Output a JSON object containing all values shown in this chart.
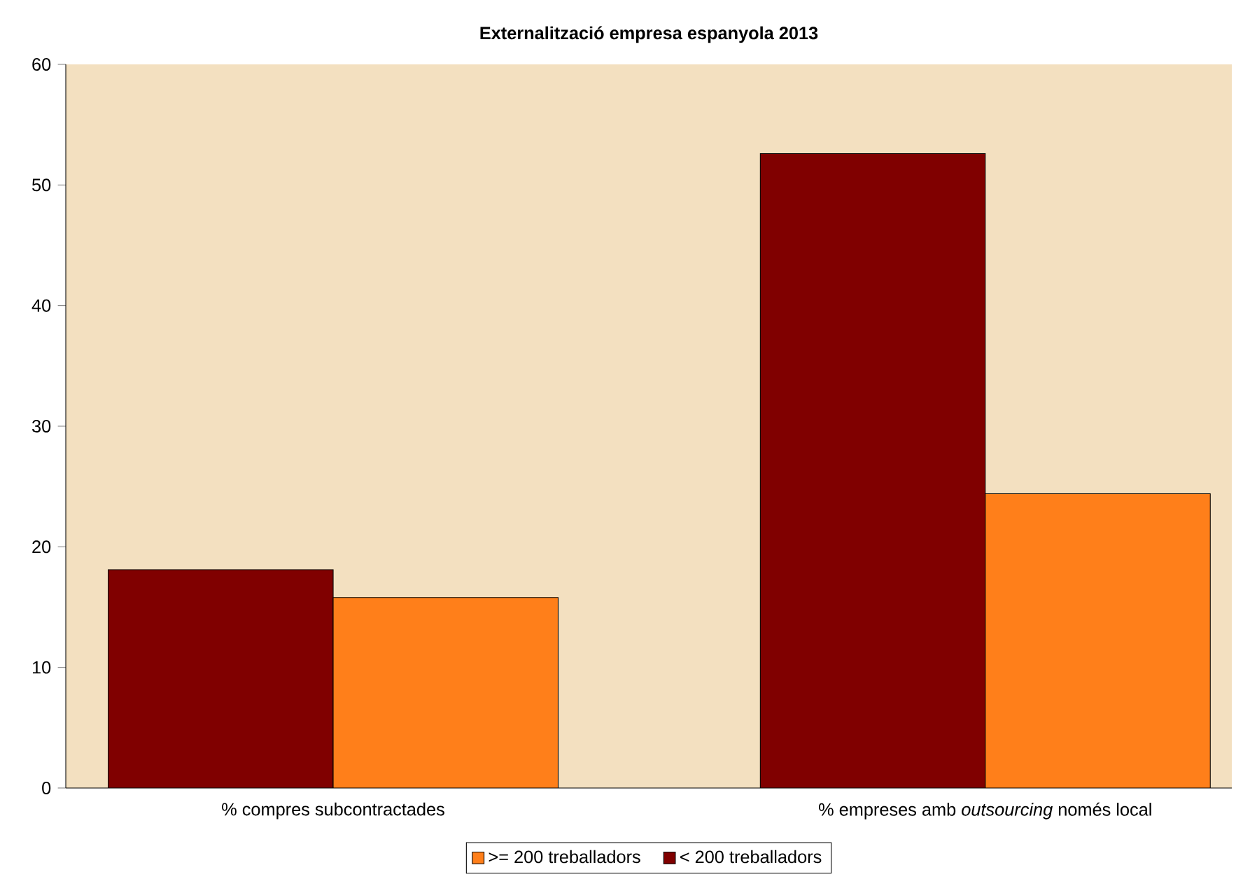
{
  "chart_data": {
    "type": "bar",
    "title": "Externalització empresa espanyola 2013",
    "categories": [
      "% compres subcontractades",
      "% empreses amb *outsourcing* només local"
    ],
    "series": [
      {
        "name": "< 200 treballadors",
        "color": "#800000",
        "values": [
          18.1,
          52.6
        ]
      },
      {
        "name": ">= 200 treballadors",
        "color": "#ff7f1a",
        "values": [
          15.8,
          24.4
        ]
      }
    ],
    "ylim": [
      0,
      60
    ],
    "yticks": [
      0,
      10,
      20,
      30,
      40,
      50,
      60
    ],
    "grid": false,
    "legend": "bottom"
  }
}
